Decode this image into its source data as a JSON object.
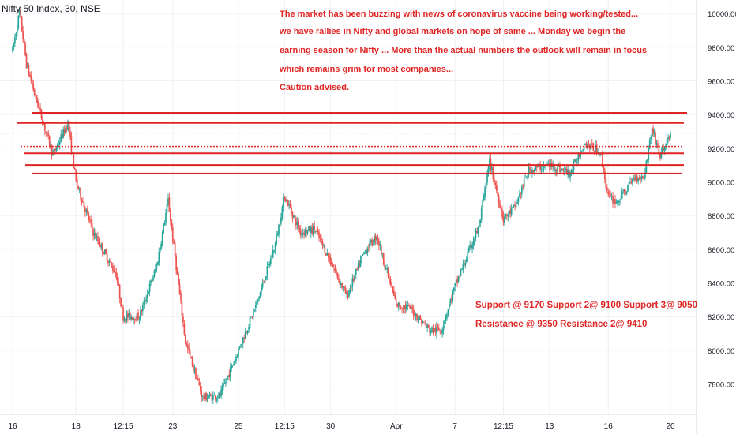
{
  "header": {
    "symbol": "Nifty 50 Index, 30, NSE"
  },
  "annotation": {
    "lines": [
      "The market has been buzzing with news of coronavirus vaccine being working/tested...",
      "we have rallies in Nifty and global markets on hope of same ... Monday we begin the",
      "earning season for Nifty ... More than the actual numbers the outlook will remain in focus",
      "which remains grim for most companies...",
      "Caution advised."
    ],
    "support_text": "Support @ 9170  Support 2@ 9100  Support 3@ 9050",
    "resistance_text": "Resistance @ 9350  Resistance 2@ 9410"
  },
  "colors": {
    "up": "#26a69a",
    "down": "#ef5350",
    "level": "#e02424",
    "grid": "#eef0f3",
    "axis_text": "#131722"
  },
  "chart_data": {
    "type": "candlestick",
    "title": "Nifty 50 Index, 30, NSE",
    "ylim": [
      7620,
      10080
    ],
    "yticks": [
      7800,
      8000,
      8200,
      8400,
      8600,
      8800,
      9000,
      9200,
      9400,
      9600,
      9800,
      10000
    ],
    "ytick_labels": [
      "7800.00",
      "8000.00",
      "8200.00",
      "8400.00",
      "8600.00",
      "8800.00",
      "9000.00",
      "9200.00",
      "9400.00",
      "9600.00",
      "9800.00",
      "10000.00"
    ],
    "xtick_labels": [
      "16",
      "18",
      "12:15",
      "23",
      "25",
      "12:15",
      "30",
      "Apr",
      "7",
      "12:15",
      "13",
      "16",
      "20"
    ],
    "xtick_index": [
      0,
      55,
      96,
      139,
      196,
      236,
      276,
      333,
      384,
      426,
      466,
      517,
      571
    ],
    "num_bars": 576,
    "current_price": 9290,
    "grid": true,
    "levels": [
      {
        "label": "Resistance 2",
        "value": 9410
      },
      {
        "label": "Resistance",
        "value": 9350
      },
      {
        "label": "Support",
        "value": 9170
      },
      {
        "label": "Support 2",
        "value": 9100
      },
      {
        "label": "Support 3",
        "value": 9050
      },
      {
        "label": "",
        "value": 9210,
        "dotted": true
      }
    ],
    "path": [
      [
        0,
        9780
      ],
      [
        6,
        10010
      ],
      [
        12,
        9700
      ],
      [
        20,
        9500
      ],
      [
        35,
        9160
      ],
      [
        48,
        9350
      ],
      [
        55,
        9000
      ],
      [
        70,
        8700
      ],
      [
        90,
        8450
      ],
      [
        96,
        8200
      ],
      [
        110,
        8200
      ],
      [
        125,
        8500
      ],
      [
        135,
        8890
      ],
      [
        150,
        8050
      ],
      [
        165,
        7720
      ],
      [
        180,
        7730
      ],
      [
        196,
        8000
      ],
      [
        212,
        8280
      ],
      [
        228,
        8630
      ],
      [
        236,
        8920
      ],
      [
        250,
        8700
      ],
      [
        262,
        8720
      ],
      [
        276,
        8530
      ],
      [
        290,
        8320
      ],
      [
        305,
        8580
      ],
      [
        316,
        8680
      ],
      [
        333,
        8270
      ],
      [
        345,
        8250
      ],
      [
        362,
        8120
      ],
      [
        372,
        8120
      ],
      [
        384,
        8380
      ],
      [
        405,
        8740
      ],
      [
        414,
        9120
      ],
      [
        426,
        8780
      ],
      [
        436,
        8850
      ],
      [
        448,
        9070
      ],
      [
        466,
        9100
      ],
      [
        484,
        9050
      ],
      [
        496,
        9230
      ],
      [
        510,
        9180
      ],
      [
        517,
        8910
      ],
      [
        525,
        8880
      ],
      [
        540,
        9030
      ],
      [
        548,
        9030
      ],
      [
        555,
        9320
      ],
      [
        562,
        9150
      ],
      [
        571,
        9290
      ]
    ]
  }
}
